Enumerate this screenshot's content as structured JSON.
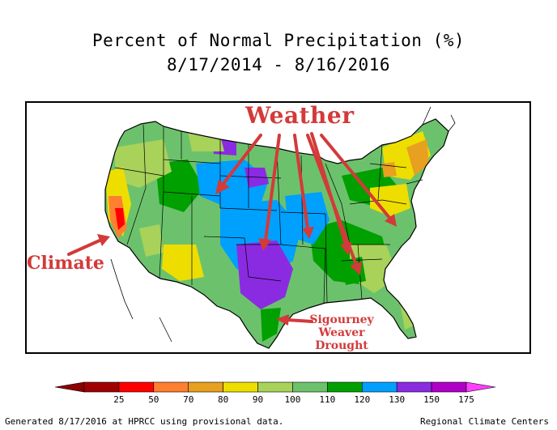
{
  "title": "Percent of Normal Precipitation (%)",
  "date_range": "8/17/2014 - 8/16/2016",
  "annotations": {
    "weather": "Weather",
    "climate": "Climate",
    "drought_lines": [
      "Sigourney",
      "Weaver",
      "Drought"
    ]
  },
  "legend": {
    "ticks": [
      "25",
      "50",
      "70",
      "80",
      "90",
      "100",
      "110",
      "120",
      "130",
      "150",
      "175"
    ],
    "colors": [
      "#a00000",
      "#ff0000",
      "#ff7f30",
      "#e8a020",
      "#eede00",
      "#a8d25a",
      "#6cc26c",
      "#00a000",
      "#00a0ff",
      "#8a2be2",
      "#b000c8"
    ],
    "low_arrow_color": "#8b0000",
    "high_arrow_color": "#ff40ff"
  },
  "footer": {
    "left": "Generated 8/17/2016 at HPRCC using provisional data.",
    "right": "Regional Climate Centers"
  },
  "colors": {
    "annotation_red": "#d33a3a"
  }
}
